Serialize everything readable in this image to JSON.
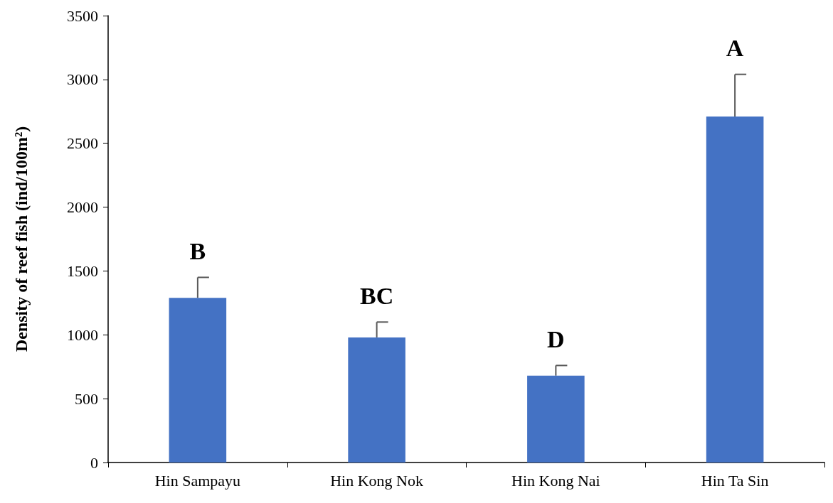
{
  "chart_data": {
    "type": "bar",
    "ylabel": "Density of reef fish (ind/100m²)",
    "categories": [
      "Hin Sampayu",
      "Hin Kong Nok",
      "Hin Kong Nai",
      "Hin Ta Sin"
    ],
    "values": [
      1290,
      980,
      680,
      2710
    ],
    "errors": [
      [
        1290,
        1450
      ],
      [
        980,
        1100
      ],
      [
        680,
        760
      ],
      [
        2710,
        3040
      ]
    ],
    "color": "#4472c4",
    "ylim": [
      0,
      3500
    ],
    "yticks": [
      0,
      500,
      1000,
      1500,
      2000,
      2500,
      3000,
      3500
    ],
    "grid": false,
    "annotations": [
      {
        "text": "B",
        "x": "Hin Sampayu",
        "y": 1450
      },
      {
        "text": "BC",
        "x": "Hin Kong Nok",
        "y": 1100
      },
      {
        "text": "D",
        "x": "Hin Kong Nai",
        "y": 760
      },
      {
        "text": "A",
        "x": "Hin Ta Sin",
        "y": 3040
      }
    ]
  }
}
